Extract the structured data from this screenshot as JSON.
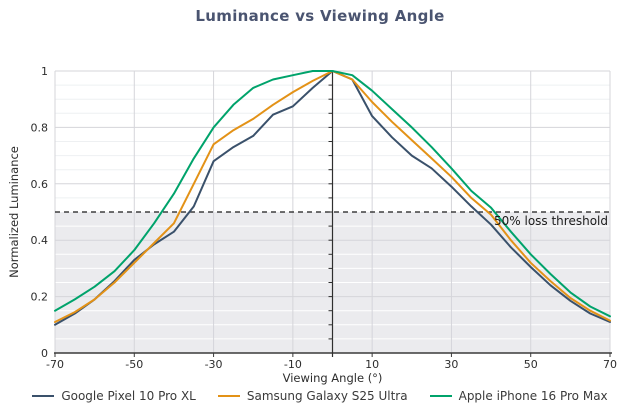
{
  "chart_data": {
    "type": "line",
    "title": "Luminance vs Viewing Angle",
    "xlabel": "Viewing Angle (°)",
    "ylabel": "Normalized Luminance",
    "xlim": [
      -70,
      70
    ],
    "ylim": [
      0,
      1
    ],
    "grid": {
      "x_major_step": 20,
      "y_major_step": 0.2,
      "y_minor_step": 0.05
    },
    "legend_position": "bottom",
    "x_ticks": [
      -70,
      -50,
      -30,
      -10,
      10,
      30,
      50,
      70
    ],
    "y_ticks": {
      "values": [
        0,
        0.2,
        0.4,
        0.6,
        0.8,
        1
      ],
      "labels": [
        "0",
        "0.2",
        "0.4",
        "0.6",
        "0.8",
        "1"
      ]
    },
    "threshold": {
      "value": 0.5,
      "label": "50% loss threshold",
      "line_color": "#1b1b1b",
      "shaded_below": true
    },
    "x": [
      -70,
      -65,
      -60,
      -55,
      -50,
      -45,
      -40,
      -35,
      -30,
      -25,
      -20,
      -15,
      -10,
      -5,
      0,
      5,
      10,
      15,
      20,
      25,
      30,
      35,
      40,
      45,
      50,
      55,
      60,
      65,
      70
    ],
    "series": [
      {
        "name": "Google Pixel 10 Pro XL",
        "color": "#3a516b",
        "values": [
          0.1,
          0.14,
          0.19,
          0.255,
          0.33,
          0.385,
          0.43,
          0.52,
          0.68,
          0.73,
          0.77,
          0.845,
          0.875,
          0.94,
          1.0,
          0.97,
          0.84,
          0.765,
          0.7,
          0.655,
          0.59,
          0.52,
          0.455,
          0.375,
          0.305,
          0.24,
          0.185,
          0.14,
          0.11
        ]
      },
      {
        "name": "Samsung Galaxy S25 Ultra",
        "color": "#e39217",
        "values": [
          0.11,
          0.145,
          0.19,
          0.25,
          0.32,
          0.39,
          0.46,
          0.6,
          0.74,
          0.79,
          0.83,
          0.88,
          0.925,
          0.965,
          1.0,
          0.97,
          0.89,
          0.82,
          0.755,
          0.69,
          0.625,
          0.55,
          0.49,
          0.4,
          0.32,
          0.255,
          0.195,
          0.15,
          0.115
        ]
      },
      {
        "name": "Apple iPhone 16 Pro Max",
        "color": "#00a36b",
        "values": [
          0.15,
          0.19,
          0.235,
          0.29,
          0.365,
          0.46,
          0.565,
          0.69,
          0.8,
          0.88,
          0.94,
          0.97,
          0.985,
          1.0,
          1.0,
          0.985,
          0.93,
          0.865,
          0.8,
          0.73,
          0.655,
          0.575,
          0.515,
          0.43,
          0.35,
          0.28,
          0.215,
          0.165,
          0.13
        ]
      }
    ]
  }
}
